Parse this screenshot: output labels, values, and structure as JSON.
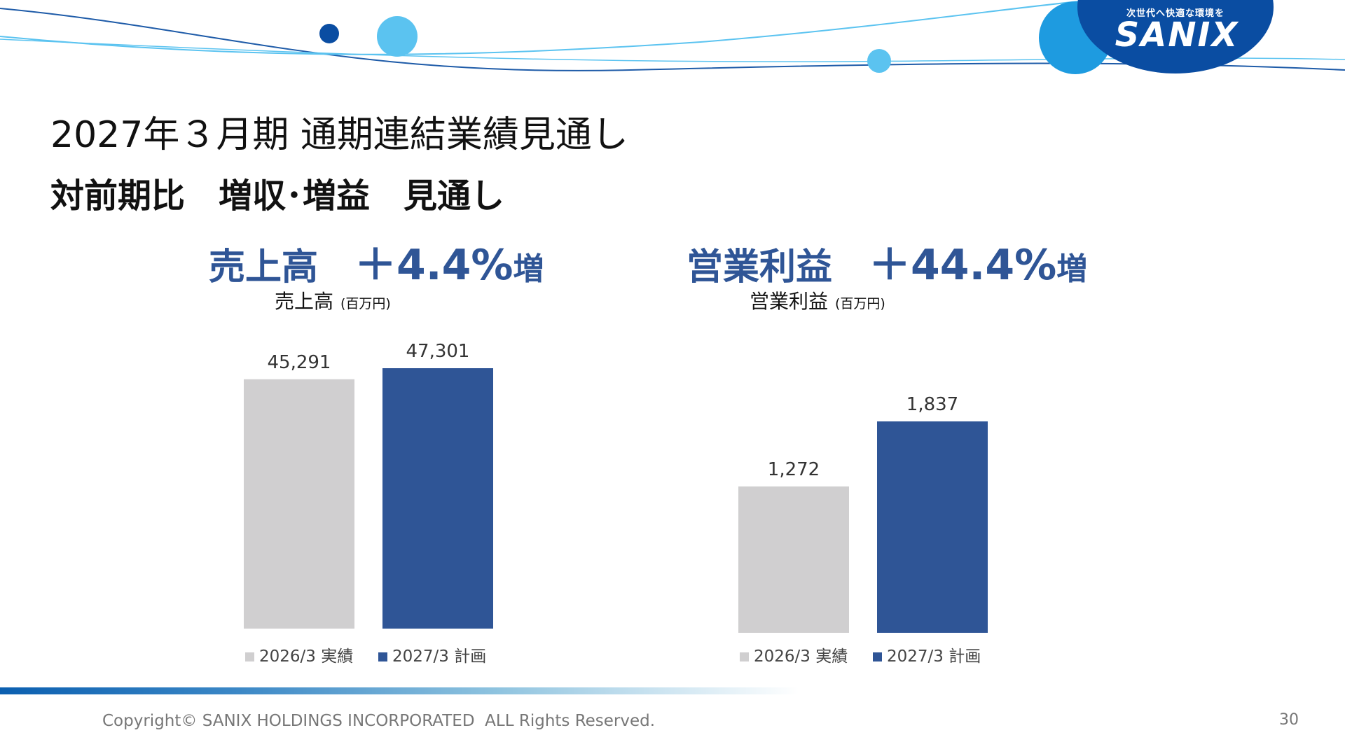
{
  "logo": {
    "tagline": "次世代へ快適な環境を",
    "name": "SANIX"
  },
  "colors": {
    "accent": "#2F5596",
    "gray_bar": "#D0CFD0",
    "plan_bar": "#2F5596",
    "deco_dark": "#0A4DA2",
    "deco_light": "#5BC3F0"
  },
  "title": "2027年３月期 通期連結業績見通し",
  "subtitle": "対前期比　増収･増益　見通し",
  "kpis": [
    {
      "label": "売上高",
      "value": "＋4.4%",
      "suffix": "増"
    },
    {
      "label": "営業利益",
      "value": "＋44.4%",
      "suffix": "増"
    }
  ],
  "chart_data": [
    {
      "type": "bar",
      "title": "売上高",
      "unit": "(百万円)",
      "categories": [
        "2026/3 実績",
        "2027/3 計画"
      ],
      "values": [
        45291,
        47301
      ],
      "value_labels": [
        "45,291",
        "47,301"
      ],
      "colors": [
        "#D0CFD0",
        "#2F5596"
      ],
      "ylim": [
        0,
        47301
      ],
      "legend": "bottom",
      "grid": false
    },
    {
      "type": "bar",
      "title": "営業利益",
      "unit": "(百万円)",
      "categories": [
        "2026/3 実績",
        "2027/3 計画"
      ],
      "values": [
        1272,
        1837
      ],
      "value_labels": [
        "1,272",
        "1,837"
      ],
      "colors": [
        "#D0CFD0",
        "#2F5596"
      ],
      "ylim": [
        0,
        1837
      ],
      "legend": "bottom",
      "grid": false
    }
  ],
  "footer": {
    "copyright": "Copyright© SANIX HOLDINGS INCORPORATED  ALL Rights Reserved.",
    "page_number": "30"
  }
}
